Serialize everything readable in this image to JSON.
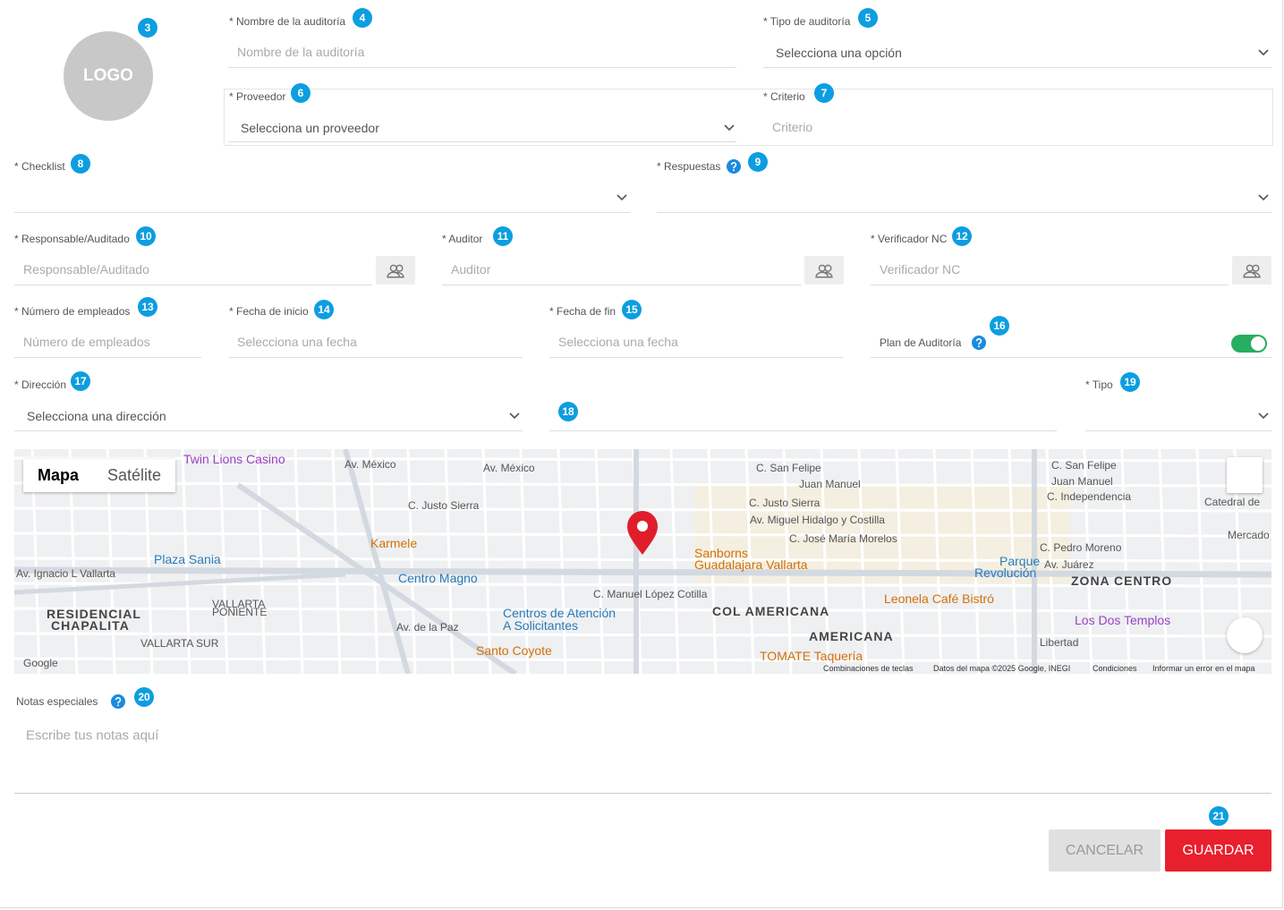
{
  "logo": "LOGO",
  "logo_badge": 3,
  "fields": [
    {
      "label": "* Nombre de la auditoría",
      "placeholder": "Nombre de la auditoría",
      "badge": 4
    },
    {
      "label": "* Tipo de auditoría",
      "placeholder": "Selecciona una opción",
      "badge": 5
    },
    {
      "label": "* Proveedor",
      "placeholder": "Selecciona un proveedor",
      "badge": 6
    },
    {
      "label": "* Criterio",
      "placeholder": "Criterio",
      "badge": 7
    },
    {
      "label": "* Checklist",
      "badge": 8
    },
    {
      "label": "* Respuestas",
      "badge": 9
    },
    {
      "label": "* Responsable/Auditado",
      "placeholder": "Responsable/Auditado",
      "badge": 10
    },
    {
      "label": "* Auditor",
      "placeholder": "Auditor",
      "badge": 11
    },
    {
      "label": "* Verificador NC",
      "placeholder": "Verificador NC",
      "badge": 12
    },
    {
      "label": "* Número de empleados",
      "placeholder": "Número de empleados",
      "badge": 13
    },
    {
      "label": "* Fecha de inicio",
      "placeholder": "Selecciona una fecha",
      "badge": 14
    },
    {
      "label": "* Fecha de fin",
      "placeholder": "Selecciona una fecha",
      "badge": 15
    },
    {
      "label": "Plan de Auditoría",
      "badge": 16
    },
    {
      "label": "* Dirección",
      "placeholder": "Selecciona una dirección",
      "badge": 17
    },
    {
      "badge": 18
    },
    {
      "label": "* Tipo",
      "badge": 19
    }
  ],
  "map": {
    "tabs": [
      "Mapa",
      "Satélite"
    ],
    "labels": [
      "Twin Lions Casino",
      "Av. México",
      "Av. México",
      "C. San Felipe",
      "Juan Manuel",
      "C. Justo Sierra",
      "C. Justo Sierra",
      "Av. Miguel Hidalgo y Costilla",
      "C. José María Morelos",
      "Karmele",
      "Plaza Sania",
      "Sanborns",
      "Guadalajara Vallarta",
      "Centro Magno",
      "Av. Ignacio L Vallarta",
      "C. Manuel López Cotilla",
      "Leonela Café Bistró",
      "Parque",
      "Revolución",
      "ZONA CENTRO",
      "C. San Felipe",
      "Juan Manuel",
      "C. Independencia",
      "Catedral de",
      "C. Pedro Moreno",
      "Av. Juárez",
      "RESIDENCIAL",
      "CHAPALITA",
      "VALLARTA",
      "PONIENTE",
      "Centros de Atención",
      "A Solicitantes",
      "COL AMERICANA",
      "AMERICANA",
      "Av. de la Paz",
      "Santo Coyote",
      "TOMATE Taquería",
      "Los Dos Templos",
      "VALLARTA SUR",
      "Libertad",
      "Mercado",
      "Combinaciones de teclas",
      "Datos del mapa ©2025 Google, INEGI",
      "Condiciones",
      "Informar un error en el mapa",
      "Google"
    ]
  },
  "notes": {
    "label": "Notas especiales",
    "placeholder": "Escribe tus notas aquí",
    "badge": 20
  },
  "actions": {
    "cancel": "CANCELAR",
    "save": "GUARDAR",
    "badge": 21
  }
}
